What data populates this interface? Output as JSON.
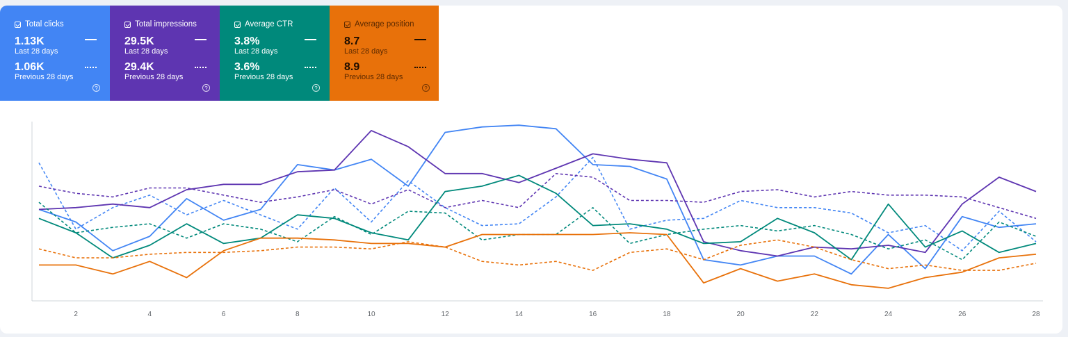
{
  "cards": [
    {
      "key": "clicks",
      "label": "Total clicks",
      "value": "1.13K",
      "period": "Last 28 days",
      "prev_value": "1.06K",
      "prev_period": "Previous 28 days",
      "color": "#4285f4"
    },
    {
      "key": "impressions",
      "label": "Total impressions",
      "value": "29.5K",
      "period": "Last 28 days",
      "prev_value": "29.4K",
      "prev_period": "Previous 28 days",
      "color": "#5e35b1"
    },
    {
      "key": "ctr",
      "label": "Average CTR",
      "value": "3.8%",
      "period": "Last 28 days",
      "prev_value": "3.6%",
      "prev_period": "Previous 28 days",
      "color": "#00897b"
    },
    {
      "key": "position",
      "label": "Average position",
      "value": "8.7",
      "period": "Last 28 days",
      "prev_value": "8.9",
      "prev_period": "Previous 28 days",
      "color": "#e8710a"
    }
  ],
  "help_glyph": "?",
  "chart_data": {
    "type": "line",
    "x": [
      1,
      2,
      3,
      4,
      5,
      6,
      7,
      8,
      9,
      10,
      11,
      12,
      13,
      14,
      15,
      16,
      17,
      18,
      19,
      20,
      21,
      22,
      23,
      24,
      25,
      26,
      27,
      28
    ],
    "xticks": [
      "2",
      "4",
      "6",
      "8",
      "10",
      "12",
      "14",
      "16",
      "18",
      "20",
      "22",
      "24",
      "26",
      "28"
    ],
    "ylim": [
      0,
      100
    ],
    "grid": false,
    "legend": "none",
    "series": [
      {
        "metric": "clicks",
        "period": "current",
        "color": "#4285f4",
        "dashed": false,
        "values": [
          51,
          44,
          28,
          36,
          57,
          45,
          51,
          76,
          73,
          79,
          64,
          94,
          97,
          98,
          96,
          76,
          75,
          68,
          23,
          20,
          25,
          25,
          15,
          37,
          18,
          47,
          41,
          43
        ]
      },
      {
        "metric": "clicks",
        "period": "previous",
        "color": "#4285f4",
        "dashed": true,
        "values": [
          77,
          40,
          52,
          59,
          48,
          56,
          48,
          40,
          63,
          44,
          67,
          52,
          42,
          43,
          58,
          80,
          40,
          45,
          46,
          56,
          52,
          52,
          49,
          38,
          42,
          28,
          50,
          33
        ]
      },
      {
        "metric": "impressions",
        "period": "current",
        "color": "#5e35b1",
        "dashed": false,
        "values": [
          51,
          52,
          54,
          52,
          62,
          65,
          65,
          72,
          73,
          95,
          86,
          71,
          71,
          66,
          74,
          82,
          79,
          77,
          33,
          28,
          25,
          30,
          29,
          31,
          27,
          54,
          69,
          61
        ]
      },
      {
        "metric": "impressions",
        "period": "previous",
        "color": "#5e35b1",
        "dashed": true,
        "values": [
          64,
          60,
          58,
          63,
          63,
          59,
          55,
          58,
          62,
          54,
          62,
          52,
          56,
          52,
          71,
          69,
          56,
          56,
          55,
          61,
          62,
          58,
          61,
          59,
          59,
          58,
          52,
          46
        ]
      },
      {
        "metric": "ctr",
        "period": "current",
        "color": "#00897b",
        "dashed": false,
        "values": [
          46,
          38,
          24,
          31,
          43,
          32,
          35,
          48,
          46,
          38,
          34,
          61,
          64,
          70,
          60,
          42,
          43,
          40,
          32,
          33,
          46,
          38,
          23,
          54,
          30,
          39,
          27,
          32
        ]
      },
      {
        "metric": "ctr",
        "period": "previous",
        "color": "#00897b",
        "dashed": true,
        "values": [
          55,
          38,
          41,
          43,
          35,
          43,
          40,
          33,
          47,
          37,
          50,
          49,
          34,
          37,
          37,
          52,
          32,
          37,
          40,
          42,
          39,
          42,
          37,
          29,
          34,
          23,
          44,
          36
        ]
      },
      {
        "metric": "position",
        "period": "current",
        "color": "#e8710a",
        "dashed": false,
        "values": [
          20,
          20,
          15,
          22,
          13,
          28,
          35,
          35,
          34,
          32,
          32,
          30,
          37,
          37,
          37,
          37,
          38,
          37,
          10,
          18,
          11,
          15,
          9,
          7,
          13,
          16,
          24,
          26
        ]
      },
      {
        "metric": "position",
        "period": "previous",
        "color": "#e8710a",
        "dashed": true,
        "values": [
          29,
          24,
          24,
          26,
          27,
          27,
          28,
          30,
          30,
          29,
          33,
          30,
          22,
          20,
          22,
          17,
          27,
          29,
          23,
          31,
          34,
          30,
          23,
          18,
          20,
          17,
          17,
          21
        ]
      }
    ]
  }
}
